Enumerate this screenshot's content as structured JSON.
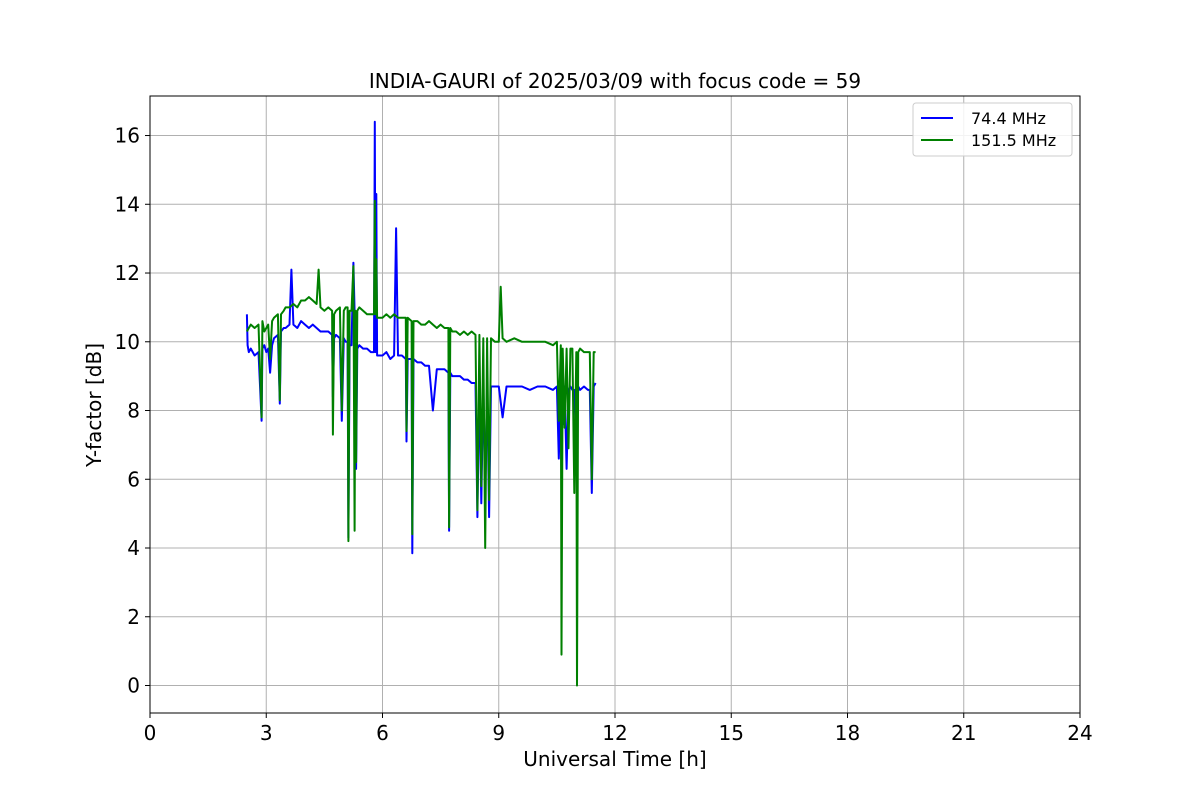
{
  "chart_data": {
    "type": "line",
    "title": "INDIA-GAURI of 2025/03/09 with focus code = 59",
    "xlabel": "Universal Time [h]",
    "ylabel": "Y-factor [dB]",
    "xlim": [
      0,
      24
    ],
    "ylim": [
      -0.8,
      17.15
    ],
    "xticks": [
      0,
      3,
      6,
      9,
      12,
      15,
      18,
      21,
      24
    ],
    "yticks": [
      0,
      2,
      4,
      6,
      8,
      10,
      12,
      14,
      16
    ],
    "grid": true,
    "legend_position": "top-right",
    "series": [
      {
        "name": " 74.4 MHz",
        "color": "#0000ff",
        "x": [
          2.5,
          2.52,
          2.55,
          2.6,
          2.7,
          2.8,
          2.88,
          2.9,
          2.95,
          3.0,
          3.05,
          3.1,
          3.15,
          3.2,
          3.3,
          3.35,
          3.38,
          3.45,
          3.5,
          3.6,
          3.65,
          3.7,
          3.8,
          3.9,
          4.0,
          4.1,
          4.2,
          4.3,
          4.4,
          4.5,
          4.6,
          4.7,
          4.72,
          4.75,
          4.8,
          4.9,
          4.95,
          5.0,
          5.05,
          5.1,
          5.12,
          5.15,
          5.2,
          5.25,
          5.3,
          5.32,
          5.35,
          5.4,
          5.5,
          5.6,
          5.7,
          5.78,
          5.8,
          5.82,
          5.84,
          5.86,
          5.9,
          6.0,
          6.1,
          6.2,
          6.3,
          6.35,
          6.4,
          6.5,
          6.6,
          6.62,
          6.65,
          6.75,
          6.77,
          6.8,
          6.9,
          7.0,
          7.1,
          7.2,
          7.3,
          7.4,
          7.5,
          7.6,
          7.7,
          7.72,
          7.75,
          7.8,
          7.9,
          8.0,
          8.1,
          8.2,
          8.3,
          8.4,
          8.45,
          8.5,
          8.55,
          8.6,
          8.65,
          8.7,
          8.75,
          8.8,
          8.9,
          9.0,
          9.1,
          9.2,
          9.4,
          9.6,
          9.8,
          10.0,
          10.2,
          10.4,
          10.5,
          10.55,
          10.6,
          10.65,
          10.7,
          10.75,
          10.8,
          10.85,
          10.9,
          10.95,
          11.0,
          11.05,
          11.1,
          11.2,
          11.3,
          11.35,
          11.4,
          11.45,
          11.5
        ],
        "values": [
          10.8,
          9.9,
          9.7,
          9.8,
          9.6,
          9.7,
          7.7,
          9.8,
          9.9,
          9.7,
          9.8,
          9.1,
          9.9,
          10.1,
          10.2,
          8.2,
          10.3,
          10.4,
          10.4,
          10.5,
          12.1,
          10.5,
          10.4,
          10.6,
          10.5,
          10.4,
          10.5,
          10.4,
          10.3,
          10.3,
          10.3,
          10.2,
          8.4,
          10.1,
          10.2,
          10.1,
          7.7,
          10.1,
          10.0,
          10.0,
          4.3,
          9.9,
          9.9,
          12.3,
          9.9,
          6.3,
          9.8,
          9.9,
          9.8,
          9.8,
          9.7,
          9.7,
          16.4,
          9.7,
          14.3,
          9.6,
          9.6,
          9.6,
          9.7,
          9.5,
          9.6,
          13.3,
          9.6,
          9.6,
          9.5,
          7.1,
          9.5,
          9.5,
          3.85,
          9.5,
          9.4,
          9.4,
          9.3,
          9.3,
          8.0,
          9.2,
          9.2,
          9.2,
          9.1,
          4.5,
          9.1,
          9.0,
          9.0,
          9.0,
          8.9,
          8.9,
          8.8,
          8.8,
          4.9,
          8.9,
          5.3,
          8.8,
          5.6,
          8.8,
          4.9,
          8.7,
          8.7,
          8.7,
          7.8,
          8.7,
          8.7,
          8.7,
          8.6,
          8.7,
          8.7,
          8.6,
          8.7,
          6.6,
          8.7,
          7.6,
          8.7,
          6.3,
          8.6,
          8.7,
          8.6,
          8.6,
          6.8,
          8.7,
          8.6,
          8.7,
          8.6,
          8.6,
          5.6,
          8.7,
          8.8
        ]
      },
      {
        "name": "151.5 MHz",
        "color": "#008000",
        "x": [
          2.5,
          2.55,
          2.6,
          2.7,
          2.8,
          2.88,
          2.9,
          2.95,
          3.0,
          3.05,
          3.1,
          3.15,
          3.2,
          3.3,
          3.35,
          3.38,
          3.45,
          3.5,
          3.6,
          3.7,
          3.8,
          3.9,
          4.0,
          4.1,
          4.2,
          4.3,
          4.35,
          4.4,
          4.5,
          4.6,
          4.7,
          4.72,
          4.75,
          4.8,
          4.9,
          4.95,
          5.0,
          5.05,
          5.1,
          5.12,
          5.15,
          5.2,
          5.25,
          5.28,
          5.3,
          5.32,
          5.35,
          5.4,
          5.5,
          5.6,
          5.7,
          5.78,
          5.8,
          5.82,
          5.84,
          5.86,
          5.9,
          6.0,
          6.1,
          6.2,
          6.3,
          6.4,
          6.5,
          6.6,
          6.62,
          6.65,
          6.75,
          6.77,
          6.8,
          6.9,
          7.0,
          7.1,
          7.2,
          7.3,
          7.4,
          7.5,
          7.6,
          7.7,
          7.72,
          7.75,
          7.8,
          7.9,
          8.0,
          8.1,
          8.2,
          8.3,
          8.4,
          8.45,
          8.5,
          8.55,
          8.6,
          8.65,
          8.7,
          8.75,
          8.8,
          8.9,
          9.0,
          9.05,
          9.1,
          9.2,
          9.4,
          9.6,
          9.8,
          10.0,
          10.2,
          10.4,
          10.5,
          10.55,
          10.6,
          10.62,
          10.65,
          10.7,
          10.75,
          10.8,
          10.85,
          10.9,
          10.95,
          11.0,
          11.02,
          11.05,
          11.1,
          11.2,
          11.3,
          11.35,
          11.4,
          11.45,
          11.5
        ],
        "values": [
          10.3,
          10.4,
          10.5,
          10.4,
          10.5,
          7.8,
          10.6,
          10.3,
          10.4,
          10.5,
          9.5,
          10.6,
          10.7,
          10.8,
          8.3,
          10.8,
          10.9,
          11.0,
          11.0,
          11.1,
          11.0,
          11.2,
          11.2,
          11.3,
          11.2,
          11.1,
          12.1,
          11.0,
          10.9,
          11.0,
          10.9,
          7.3,
          10.8,
          10.9,
          11.0,
          8.0,
          10.9,
          11.0,
          11.0,
          4.2,
          10.9,
          10.9,
          12.2,
          4.5,
          10.9,
          6.5,
          10.9,
          11.0,
          10.9,
          10.8,
          10.8,
          10.8,
          14.1,
          10.8,
          12.4,
          10.7,
          10.7,
          10.7,
          10.8,
          10.7,
          10.8,
          10.7,
          10.7,
          10.7,
          7.4,
          10.7,
          10.6,
          4.4,
          10.6,
          10.6,
          10.5,
          10.5,
          10.6,
          10.5,
          10.4,
          10.5,
          10.4,
          10.4,
          4.6,
          10.4,
          10.3,
          10.3,
          10.2,
          10.3,
          10.2,
          10.3,
          10.2,
          5.1,
          10.2,
          5.8,
          10.1,
          4.0,
          10.1,
          5.4,
          10.1,
          10.0,
          10.0,
          11.6,
          10.1,
          10.0,
          10.1,
          10.0,
          10.0,
          10.0,
          10.0,
          9.9,
          10.0,
          7.7,
          9.9,
          0.9,
          9.8,
          7.5,
          9.8,
          6.9,
          9.8,
          9.8,
          5.6,
          9.7,
          0.0,
          9.7,
          9.8,
          9.7,
          9.7,
          9.7,
          6.0,
          9.7,
          9.7
        ]
      }
    ]
  }
}
